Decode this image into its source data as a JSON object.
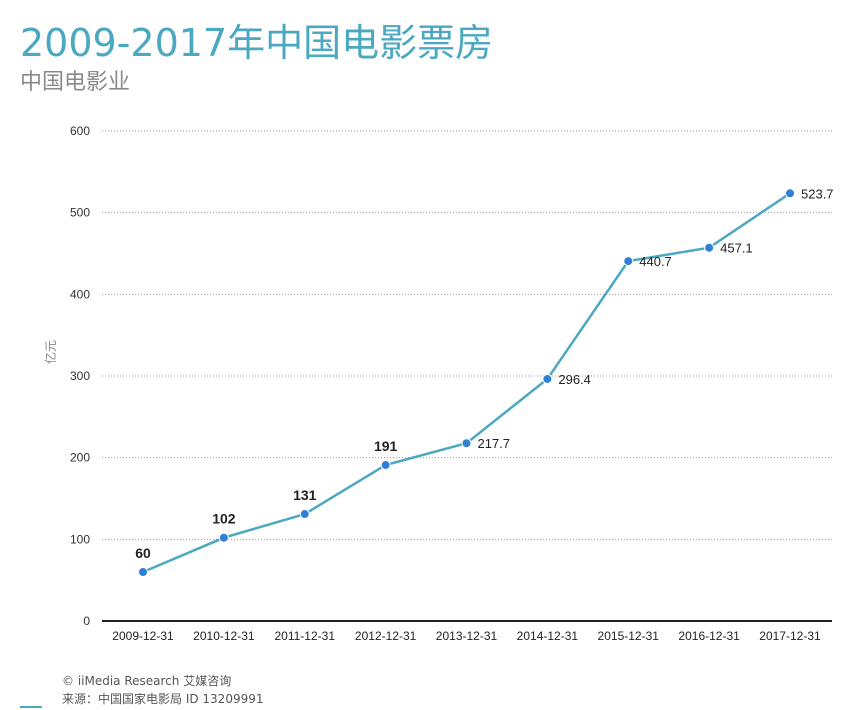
{
  "header": {
    "title": "2009-2017年中国电影票房",
    "subtitle": "中国电影业"
  },
  "footer": {
    "copyright": "© iiMedia Research 艾媒咨询",
    "source": "来源：中国国家电影局  ID 13209991"
  },
  "colors": {
    "title": "#4aa8c0",
    "line": "#4aa8c0",
    "point": "#2f7fd8",
    "grid": "#9a9a9a",
    "axis": "#222222"
  },
  "chart_data": {
    "type": "line",
    "title": "2009-2017年中国电影票房",
    "subtitle": "中国电影业",
    "xlabel": "",
    "ylabel": "亿元",
    "categories": [
      "2009-12-31",
      "2010-12-31",
      "2011-12-31",
      "2012-12-31",
      "2013-12-31",
      "2014-12-31",
      "2015-12-31",
      "2016-12-31",
      "2017-12-31"
    ],
    "series": [
      {
        "values": [
          60,
          102,
          131,
          191,
          217.7,
          296.4,
          440.7,
          457.1,
          523.7
        ]
      }
    ],
    "data_labels": [
      "60",
      "102",
      "131",
      "191",
      "217.7",
      "296.4",
      "440.7",
      "457.1",
      "523.7"
    ],
    "ylim": [
      0,
      600
    ],
    "yticks": [
      0,
      100,
      200,
      300,
      400,
      500,
      600
    ],
    "grid": true,
    "legend": "none"
  }
}
